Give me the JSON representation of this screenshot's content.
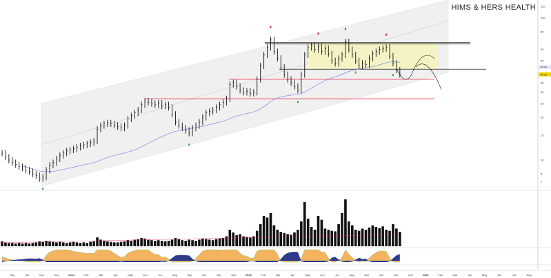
{
  "header": {
    "title": "HIMS & HERS HEALTH"
  },
  "chart_data": {
    "type": "bar",
    "subtype": "ohlc-weekly",
    "title": "HIMS & HERS HEALTH",
    "scale": "log",
    "grid": false,
    "x_tick_labels": [
      "Sep",
      "Oct",
      "Nov",
      "Dec",
      "2024",
      "Feb",
      "Mar",
      "Apr",
      "May",
      "Jun",
      "Jul",
      "Aug",
      "Sep",
      "Oct",
      "Nov",
      "Dec",
      "2025",
      "Feb",
      "Mar",
      "Apr",
      "May",
      "Jun",
      "Jul",
      "Aug",
      "Sep",
      "Oct",
      "Nov",
      "Dec",
      "2026",
      "Feb",
      "Mar",
      "Apr",
      "May",
      "Jun",
      "Jul",
      "Aug"
    ],
    "y_ticks": [
      120,
      100,
      80,
      60,
      50,
      35,
      30,
      25,
      20,
      15,
      10,
      8,
      7
    ],
    "last_price_label": "40.08",
    "ma_label": "44.90",
    "colors": {
      "price_bar": "#111111",
      "ma": "#7a86e8",
      "resistance": "#111111",
      "support": "#e8304a",
      "box": "#f5f3c4",
      "last_price": "#f2d600",
      "buy_marker": "#2fa84f",
      "sell_marker": "#e0262b",
      "volume": "#111111",
      "indicator_fill": "#f4b35e",
      "indicator_low": "#2d3a8c"
    },
    "close": [
      11.2,
      10.5,
      10.0,
      9.6,
      9.3,
      9.0,
      8.8,
      8.5,
      8.3,
      8.0,
      7.8,
      7.4,
      7.6,
      8.5,
      9.2,
      9.6,
      10.2,
      10.8,
      11.2,
      11.6,
      11.8,
      12.0,
      12.3,
      12.6,
      12.8,
      13.0,
      13.3,
      13.6,
      16.5,
      17.5,
      18.0,
      18.3,
      18.0,
      17.6,
      17.2,
      16.8,
      17.5,
      19.5,
      20.5,
      21.5,
      22.5,
      24.5,
      26.0,
      25.5,
      25.0,
      24.5,
      25.2,
      24.0,
      24.5,
      23.5,
      21.0,
      18.5,
      17.5,
      16.8,
      16.2,
      15.5,
      16.8,
      17.5,
      18.5,
      20.0,
      21.5,
      22.0,
      22.5,
      23.5,
      24.5,
      25.5,
      27.0,
      34.0,
      35.0,
      33.0,
      31.0,
      30.0,
      30.5,
      29.5,
      30.0,
      37.0,
      46.0,
      55.0,
      62.0,
      70.0,
      58.0,
      52.0,
      45.0,
      40.0,
      37.0,
      35.0,
      33.0,
      31.0,
      40.0,
      55.0,
      62.0,
      64.0,
      60.0,
      63.0,
      58.0,
      61.0,
      56.0,
      50.0,
      48.0,
      52.0,
      55.0,
      68.0,
      60.0,
      55.0,
      50.0,
      46.0,
      48.0,
      47.0,
      52.0,
      56.0,
      58.0,
      60.0,
      61.0,
      62.0,
      54.0,
      48.0,
      43.0,
      40.08
    ],
    "volume_m": [
      9,
      7,
      6,
      6,
      5,
      6,
      5,
      6,
      5,
      6,
      7,
      9,
      8,
      10,
      9,
      8,
      7,
      8,
      7,
      6,
      7,
      8,
      7,
      6,
      7,
      6,
      8,
      9,
      16,
      12,
      10,
      9,
      8,
      7,
      7,
      8,
      9,
      11,
      10,
      12,
      13,
      15,
      14,
      12,
      11,
      10,
      11,
      10,
      9,
      10,
      12,
      15,
      13,
      11,
      10,
      12,
      11,
      10,
      12,
      14,
      13,
      12,
      11,
      13,
      14,
      15,
      18,
      30,
      25,
      20,
      22,
      18,
      17,
      16,
      18,
      28,
      40,
      55,
      52,
      60,
      38,
      30,
      26,
      24,
      22,
      21,
      25,
      30,
      45,
      80,
      50,
      35,
      30,
      55,
      48,
      32,
      30,
      28,
      27,
      40,
      60,
      85,
      45,
      38,
      30,
      28,
      32,
      30,
      34,
      38,
      35,
      33,
      36,
      30,
      28,
      40,
      32,
      26
    ],
    "annotations": {
      "resistance_upper": 67,
      "resistance_lower": 43.6,
      "support_upper": 37,
      "support_lower": 27,
      "sell_marks_at_index": [
        79,
        93,
        101,
        113
      ],
      "buy_marks_at_index": [
        12,
        55,
        87,
        104,
        115
      ]
    }
  }
}
